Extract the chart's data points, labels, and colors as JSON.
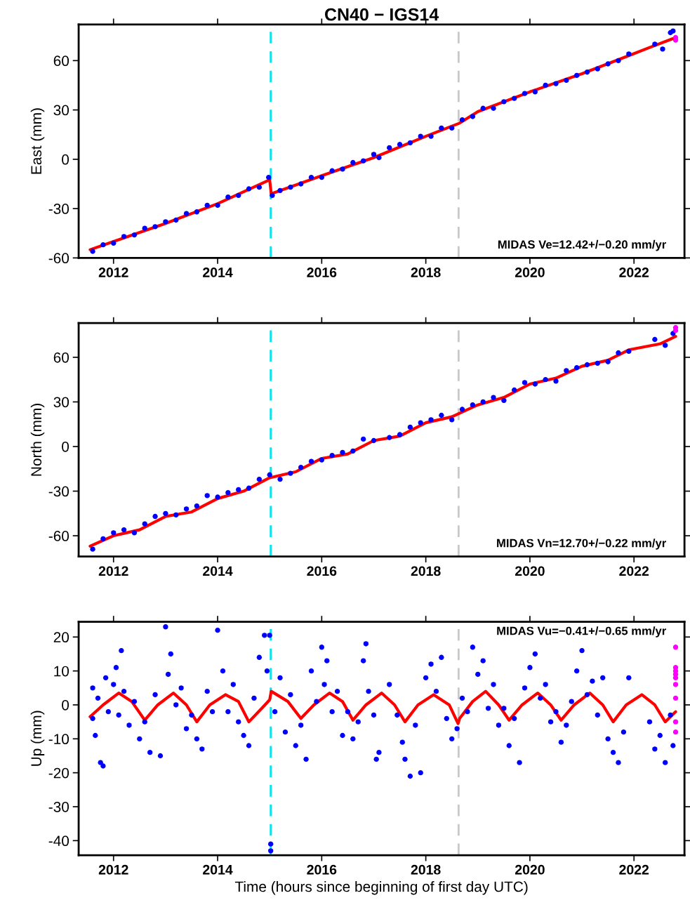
{
  "chart_data": [
    {
      "type": "scatter",
      "title": "CN40 − IGS14",
      "ylabel": "East (mm)",
      "xlim": [
        2011.33,
        2022.97
      ],
      "xticks": [
        2012,
        2014,
        2016,
        2018,
        2020,
        2022
      ],
      "ylim": [
        -60,
        82
      ],
      "yticks": [
        -60,
        -30,
        0,
        30,
        60
      ],
      "series": [
        {
          "marker": "circle",
          "color": "#0000ff",
          "x": [
            2011.6,
            2011.8,
            2012.0,
            2012.2,
            2012.4,
            2012.6,
            2012.8,
            2013.0,
            2013.2,
            2013.4,
            2013.6,
            2013.8,
            2014.0,
            2014.2,
            2014.4,
            2014.6,
            2014.8,
            2014.98,
            2015.05,
            2015.2,
            2015.4,
            2015.6,
            2015.8,
            2016.0,
            2016.2,
            2016.4,
            2016.6,
            2016.8,
            2017.0,
            2017.1,
            2017.3,
            2017.5,
            2017.7,
            2017.9,
            2018.1,
            2018.3,
            2018.5,
            2018.7,
            2018.9,
            2019.1,
            2019.3,
            2019.5,
            2019.7,
            2019.9,
            2020.1,
            2020.3,
            2020.5,
            2020.7,
            2020.9,
            2021.1,
            2021.3,
            2021.5,
            2021.7,
            2021.9,
            2022.4,
            2022.55,
            2022.7,
            2022.75
          ],
          "values": [
            -56,
            -52,
            -51,
            -47,
            -46,
            -42,
            -41,
            -38,
            -37,
            -33,
            -32,
            -28,
            -28,
            -23,
            -22,
            -18,
            -17,
            -11,
            -22,
            -19,
            -17,
            -15,
            -11,
            -11,
            -7,
            -6,
            -2,
            -1,
            3,
            1,
            7,
            9,
            10,
            14,
            14,
            19,
            19,
            24,
            26,
            31,
            31,
            35,
            37,
            40,
            41,
            45,
            46,
            48,
            51,
            53,
            55,
            58,
            60,
            64,
            70,
            67,
            77,
            78
          ]
        },
        {
          "type": "line",
          "color": "#ff0000",
          "x": [
            2011.55,
            2012,
            2013,
            2014,
            2015.0,
            2015.03,
            2016,
            2017,
            2018,
            2018.65,
            2019,
            2020,
            2021,
            2021.9,
            2022.3,
            2022.8
          ],
          "values": [
            -55,
            -50,
            -39,
            -27,
            -12.5,
            -21,
            -10,
            1,
            14,
            22,
            29,
            41,
            52,
            63,
            68,
            74
          ]
        },
        {
          "marker": "circle",
          "color": "#ff00ff",
          "x": [
            2022.8,
            2022.8
          ],
          "values": [
            72.5,
            74
          ]
        }
      ],
      "ref_lines": [
        {
          "axis": "x",
          "value": 2015.02,
          "color": "#00e5ee",
          "line_style": "dashed"
        },
        {
          "axis": "x",
          "value": 2018.63,
          "color": "#c8c8c8",
          "line_style": "dashed"
        }
      ],
      "annotations": [
        "MIDAS Ve=12.42+/−0.20 mm/yr"
      ]
    },
    {
      "type": "scatter",
      "ylabel": "North (mm)",
      "xlim": [
        2011.33,
        2022.97
      ],
      "xticks": [
        2012,
        2014,
        2016,
        2018,
        2020,
        2022
      ],
      "ylim": [
        -74,
        83
      ],
      "yticks": [
        -60,
        -30,
        0,
        30,
        60
      ],
      "series": [
        {
          "marker": "circle",
          "color": "#0000ff",
          "x": [
            2011.6,
            2011.8,
            2012.0,
            2012.2,
            2012.4,
            2012.6,
            2012.8,
            2013.0,
            2013.2,
            2013.4,
            2013.6,
            2013.8,
            2014.0,
            2014.2,
            2014.4,
            2014.6,
            2014.8,
            2015.0,
            2015.2,
            2015.4,
            2015.6,
            2015.8,
            2016.0,
            2016.2,
            2016.4,
            2016.6,
            2016.8,
            2017.0,
            2017.3,
            2017.5,
            2017.7,
            2017.9,
            2018.1,
            2018.3,
            2018.5,
            2018.7,
            2018.9,
            2019.1,
            2019.3,
            2019.5,
            2019.7,
            2019.9,
            2020.1,
            2020.3,
            2020.5,
            2020.7,
            2020.9,
            2021.1,
            2021.3,
            2021.5,
            2021.7,
            2021.9,
            2022.4,
            2022.6,
            2022.75
          ],
          "values": [
            -69,
            -62,
            -58,
            -56,
            -58,
            -52,
            -47,
            -45,
            -46,
            -42,
            -40,
            -33,
            -34,
            -31,
            -29,
            -28,
            -22,
            -19,
            -22,
            -18,
            -14,
            -10,
            -9,
            -6,
            -4,
            -3,
            5,
            4,
            6,
            8,
            13,
            16,
            18,
            21,
            18,
            25,
            28,
            30,
            33,
            31,
            38,
            43,
            42,
            45,
            44,
            51,
            53,
            55,
            56,
            57,
            63,
            64,
            72,
            68,
            76
          ]
        },
        {
          "type": "line",
          "color": "#ff0000",
          "x": [
            2011.55,
            2012,
            2012.5,
            2013,
            2013.5,
            2014,
            2014.5,
            2015.0,
            2015.5,
            2016,
            2016.5,
            2017,
            2017.5,
            2018,
            2018.5,
            2019,
            2019.5,
            2020,
            2020.5,
            2021,
            2021.5,
            2021.9,
            2022.5,
            2022.8
          ],
          "values": [
            -67,
            -60,
            -56,
            -47,
            -44,
            -35,
            -30,
            -21,
            -17,
            -8,
            -5,
            4,
            7,
            16,
            20,
            28,
            33,
            42,
            46,
            54,
            58,
            65,
            69,
            74
          ]
        },
        {
          "marker": "circle",
          "color": "#ff00ff",
          "x": [
            2022.8,
            2022.8
          ],
          "values": [
            78,
            80
          ]
        }
      ],
      "ref_lines": [
        {
          "axis": "x",
          "value": 2015.02,
          "color": "#00e5ee",
          "line_style": "dashed"
        },
        {
          "axis": "x",
          "value": 2018.63,
          "color": "#c8c8c8",
          "line_style": "dashed"
        }
      ],
      "annotations": [
        "MIDAS Vn=12.70+/−0.22 mm/yr"
      ]
    },
    {
      "type": "scatter",
      "ylabel": "Up (mm)",
      "xlabel": "Time (hours since beginning of first day UTC)",
      "xlim": [
        2011.33,
        2022.97
      ],
      "xticks": [
        2012,
        2014,
        2016,
        2018,
        2020,
        2022
      ],
      "ylim": [
        -44.3,
        24.5
      ],
      "yticks": [
        -40,
        -30,
        -20,
        -10,
        0,
        10,
        20
      ],
      "series": [
        {
          "marker": "circle",
          "color": "#0000ff",
          "x": [
            2011.6,
            2011.6,
            2011.65,
            2011.7,
            2011.75,
            2011.8,
            2011.85,
            2011.9,
            2012.0,
            2012.05,
            2012.1,
            2012.15,
            2012.2,
            2012.3,
            2012.4,
            2012.5,
            2012.6,
            2012.7,
            2012.8,
            2012.9,
            2013.0,
            2013.05,
            2013.1,
            2013.2,
            2013.3,
            2013.4,
            2013.5,
            2013.6,
            2013.7,
            2013.8,
            2013.9,
            2014.0,
            2014.1,
            2014.2,
            2014.3,
            2014.4,
            2014.5,
            2014.6,
            2014.7,
            2014.8,
            2014.9,
            2014.95,
            2015.0,
            2015.02,
            2015.02,
            2015.1,
            2015.2,
            2015.3,
            2015.4,
            2015.5,
            2015.6,
            2015.7,
            2015.8,
            2015.9,
            2016.0,
            2016.05,
            2016.1,
            2016.2,
            2016.3,
            2016.4,
            2016.5,
            2016.6,
            2016.7,
            2016.8,
            2016.85,
            2016.9,
            2017.0,
            2017.05,
            2017.1,
            2017.3,
            2017.45,
            2017.55,
            2017.6,
            2017.7,
            2017.8,
            2017.9,
            2018.0,
            2018.1,
            2018.2,
            2018.3,
            2018.4,
            2018.5,
            2018.6,
            2018.7,
            2018.8,
            2018.9,
            2019.0,
            2019.1,
            2019.2,
            2019.3,
            2019.4,
            2019.5,
            2019.6,
            2019.7,
            2019.8,
            2019.9,
            2020.0,
            2020.1,
            2020.2,
            2020.3,
            2020.4,
            2020.5,
            2020.6,
            2020.7,
            2020.8,
            2020.9,
            2021.0,
            2021.1,
            2021.2,
            2021.3,
            2021.4,
            2021.5,
            2021.6,
            2021.7,
            2021.8,
            2021.9,
            2022.3,
            2022.4,
            2022.5,
            2022.6,
            2022.7,
            2022.75
          ],
          "values": [
            -4,
            5,
            -9,
            2,
            -17,
            -18,
            8,
            -2,
            6,
            11,
            -3,
            16,
            4,
            -6,
            1,
            -10,
            -5,
            -14,
            3,
            -15,
            23,
            9,
            15,
            0,
            5,
            -7,
            -3,
            -10,
            -13,
            4,
            -2,
            22,
            10,
            -2,
            6,
            -5,
            -9,
            -12,
            2,
            14,
            20.5,
            10,
            20.5,
            -41,
            -43,
            -2,
            8,
            -8,
            3,
            -12,
            -6,
            -16,
            10,
            1,
            17,
            6,
            13,
            -2,
            4,
            -9,
            -2,
            -10,
            -5,
            13,
            18,
            4,
            -3,
            -16,
            -14,
            6,
            -3,
            -11,
            -16,
            -21,
            -6,
            -20,
            8,
            12,
            4,
            14,
            -4,
            -10,
            -7,
            2,
            -2,
            17,
            9,
            13,
            -1,
            6,
            -6,
            -1,
            -12,
            -4,
            -17,
            5,
            11,
            15,
            2,
            6,
            -5,
            -2,
            -11,
            -6,
            1,
            10,
            16,
            3,
            7,
            -3,
            8,
            -10,
            -14,
            -17,
            -8,
            8,
            -5,
            -13,
            -9,
            -17,
            -3,
            -12
          ]
        },
        {
          "type": "line",
          "color": "#ff0000",
          "x": [
            2011.55,
            2011.8,
            2012.1,
            2012.35,
            2012.6,
            2012.85,
            2013.15,
            2013.4,
            2013.6,
            2013.85,
            2014.15,
            2014.4,
            2014.6,
            2014.85,
            2015.0,
            2015.03,
            2015.35,
            2015.6,
            2015.85,
            2016.15,
            2016.4,
            2016.6,
            2016.85,
            2017.15,
            2017.4,
            2017.6,
            2017.85,
            2018.15,
            2018.45,
            2018.62,
            2018.65,
            2018.9,
            2019.15,
            2019.4,
            2019.6,
            2019.85,
            2020.15,
            2020.4,
            2020.6,
            2020.85,
            2021.15,
            2021.4,
            2021.6,
            2021.85,
            2022.15,
            2022.4,
            2022.6,
            2022.8
          ],
          "values": [
            -3.5,
            0,
            3.5,
            1,
            -4.5,
            0,
            3.5,
            0,
            -5,
            0,
            3,
            1,
            -5,
            -1,
            1.5,
            4,
            1,
            -4,
            0,
            3.5,
            1,
            -4.5,
            0,
            3.5,
            0,
            -5,
            0,
            3,
            0,
            -5.5,
            -4,
            1,
            4,
            0,
            -4.5,
            0,
            3.5,
            0,
            -4.5,
            0,
            3.5,
            0,
            -5,
            0,
            3,
            0,
            -5,
            -2
          ]
        },
        {
          "marker": "circle",
          "color": "#ff00ff",
          "x": [
            2022.8,
            2022.8,
            2022.8,
            2022.8,
            2022.8,
            2022.8,
            2022.8,
            2022.8,
            2022.8
          ],
          "values": [
            17,
            11,
            10,
            9,
            8,
            6,
            2,
            -5,
            -8
          ]
        }
      ],
      "ref_lines": [
        {
          "axis": "x",
          "value": 2015.02,
          "color": "#00e5ee",
          "line_style": "dashed"
        },
        {
          "axis": "x",
          "value": 2018.63,
          "color": "#c8c8c8",
          "line_style": "dashed"
        }
      ],
      "annotations": [
        "MIDAS Vu=−0.41+/−0.65 mm/yr"
      ]
    }
  ]
}
